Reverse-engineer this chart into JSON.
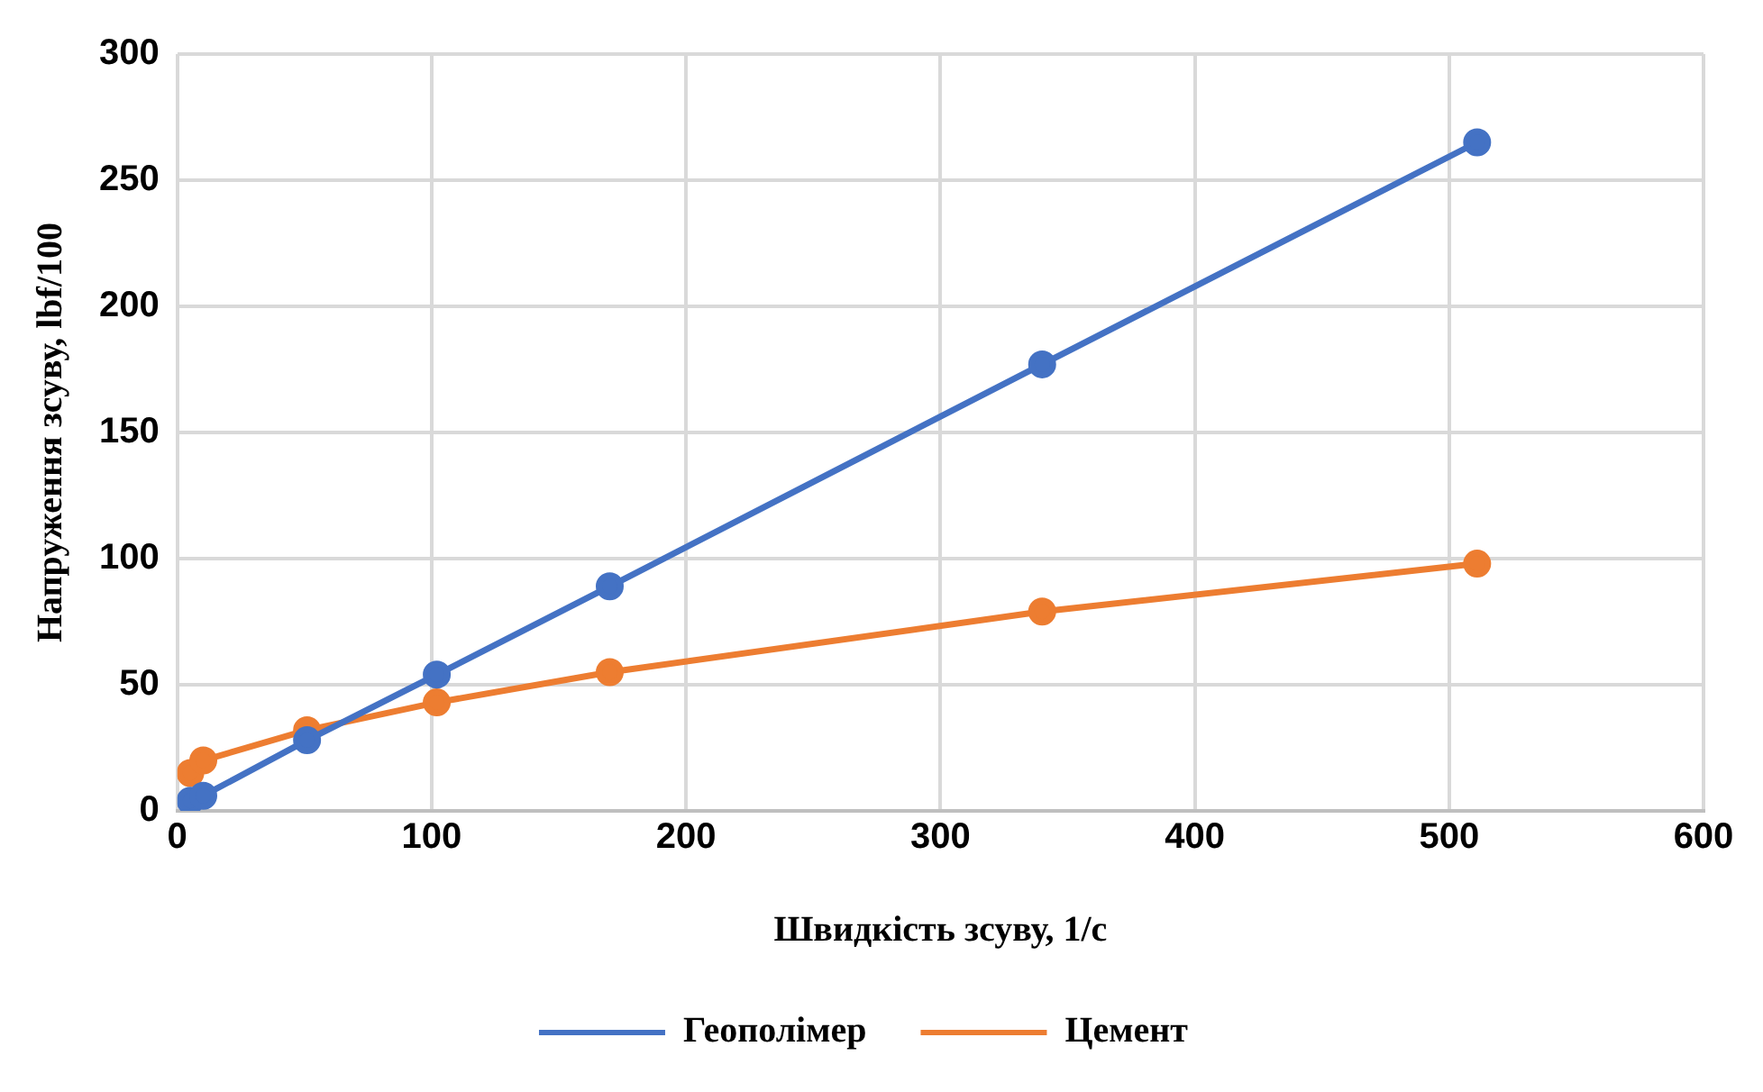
{
  "chart_data": {
    "type": "line",
    "xlabel": "Швидкість зсуву, 1/с",
    "ylabel": "Напруження зсуву, lbf/100",
    "x": [
      5.1,
      10.2,
      51,
      102,
      170,
      340,
      511
    ],
    "series": [
      {
        "name": "Геополімер",
        "color": "#4472c4",
        "values": [
          4,
          6,
          28,
          54,
          89,
          177,
          265
        ]
      },
      {
        "name": "Цемент",
        "color": "#ed7d31",
        "values": [
          15,
          20,
          32,
          43,
          55,
          79,
          98
        ]
      }
    ],
    "xlim": [
      0,
      600
    ],
    "xticks": [
      0,
      100,
      200,
      300,
      400,
      500,
      600
    ],
    "ylim": [
      0,
      300
    ],
    "yticks": [
      0,
      50,
      100,
      150,
      200,
      250,
      300
    ],
    "grid": true,
    "legend": "bottom",
    "marker": "circle",
    "line_style": "solid"
  }
}
